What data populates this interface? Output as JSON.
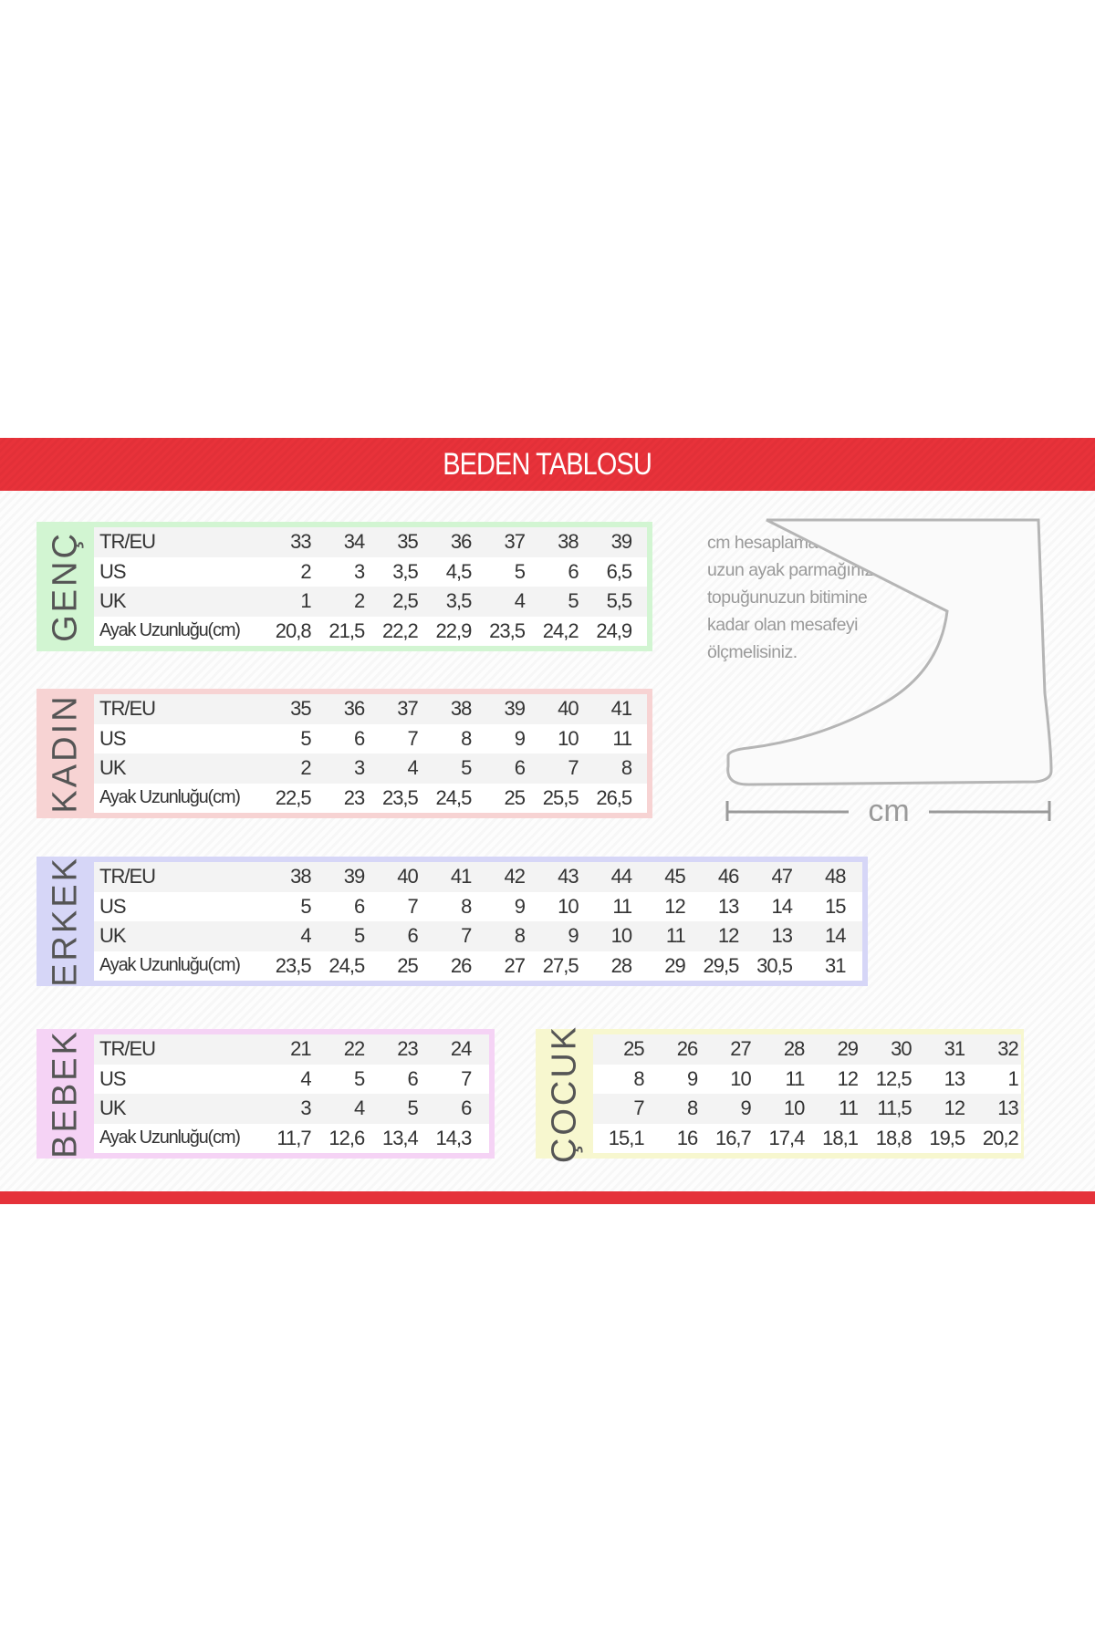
{
  "title": "BEDEN TABLOSU",
  "note_lines": [
    "cm hesaplaması için en",
    "uzun ayak parmağınızdan",
    "topuğunuzun bitimine",
    "kadar olan mesafeyi",
    "ölçmelisiniz."
  ],
  "ruler_label": "cm",
  "colors": {
    "accent": "#e5323a",
    "genc": "#d2f5d2",
    "kadin": "#f7d3d3",
    "erkek": "#d6d6f7",
    "bebek": "#f5d3f5",
    "cocuk": "#f7f7cf"
  },
  "tables": [
    {
      "id": "genc",
      "label": "GENÇ",
      "rows": [
        {
          "label": "TR/EU",
          "values": [
            "33",
            "34",
            "35",
            "36",
            "37",
            "38",
            "39"
          ]
        },
        {
          "label": "US",
          "values": [
            "2",
            "3",
            "3,5",
            "4,5",
            "5",
            "6",
            "6,5"
          ]
        },
        {
          "label": "UK",
          "values": [
            "1",
            "2",
            "2,5",
            "3,5",
            "4",
            "5",
            "5,5"
          ]
        },
        {
          "label": "Ayak Uzunluğu(cm)",
          "values": [
            "20,8",
            "21,5",
            "22,2",
            "22,9",
            "23,5",
            "24,2",
            "24,9"
          ]
        }
      ]
    },
    {
      "id": "kadin",
      "label": "KADIN",
      "rows": [
        {
          "label": "TR/EU",
          "values": [
            "35",
            "36",
            "37",
            "38",
            "39",
            "40",
            "41"
          ]
        },
        {
          "label": "US",
          "values": [
            "5",
            "6",
            "7",
            "8",
            "9",
            "10",
            "11"
          ]
        },
        {
          "label": "UK",
          "values": [
            "2",
            "3",
            "4",
            "5",
            "6",
            "7",
            "8"
          ]
        },
        {
          "label": "Ayak Uzunluğu(cm)",
          "values": [
            "22,5",
            "23",
            "23,5",
            "24,5",
            "25",
            "25,5",
            "26,5"
          ]
        }
      ]
    },
    {
      "id": "erkek",
      "label": "ERKEK",
      "rows": [
        {
          "label": "TR/EU",
          "values": [
            "38",
            "39",
            "40",
            "41",
            "42",
            "43",
            "44",
            "45",
            "46",
            "47",
            "48"
          ]
        },
        {
          "label": "US",
          "values": [
            "5",
            "6",
            "7",
            "8",
            "9",
            "10",
            "11",
            "12",
            "13",
            "14",
            "15"
          ]
        },
        {
          "label": "UK",
          "values": [
            "4",
            "5",
            "6",
            "7",
            "8",
            "9",
            "10",
            "11",
            "12",
            "13",
            "14"
          ]
        },
        {
          "label": "Ayak Uzunluğu(cm)",
          "values": [
            "23,5",
            "24,5",
            "25",
            "26",
            "27",
            "27,5",
            "28",
            "29",
            "29,5",
            "30,5",
            "31"
          ]
        }
      ]
    },
    {
      "id": "bebek",
      "label": "BEBEK",
      "rows": [
        {
          "label": "TR/EU",
          "values": [
            "21",
            "22",
            "23",
            "24"
          ]
        },
        {
          "label": "US",
          "values": [
            "4",
            "5",
            "6",
            "7"
          ]
        },
        {
          "label": "UK",
          "values": [
            "3",
            "4",
            "5",
            "6"
          ]
        },
        {
          "label": "Ayak Uzunluğu(cm)",
          "values": [
            "11,7",
            "12,6",
            "13,4",
            "14,3"
          ]
        }
      ]
    },
    {
      "id": "cocuk",
      "label": "ÇOCUK",
      "rows": [
        {
          "label": "",
          "values": [
            "25",
            "26",
            "27",
            "28",
            "29",
            "30",
            "31",
            "32"
          ]
        },
        {
          "label": "",
          "values": [
            "8",
            "9",
            "10",
            "11",
            "12",
            "12,5",
            "13",
            "1"
          ]
        },
        {
          "label": "",
          "values": [
            "7",
            "8",
            "9",
            "10",
            "11",
            "11,5",
            "12",
            "13"
          ]
        },
        {
          "label": "",
          "values": [
            "15,1",
            "16",
            "16,7",
            "17,4",
            "18,1",
            "18,8",
            "19,5",
            "20,2"
          ]
        }
      ]
    }
  ]
}
